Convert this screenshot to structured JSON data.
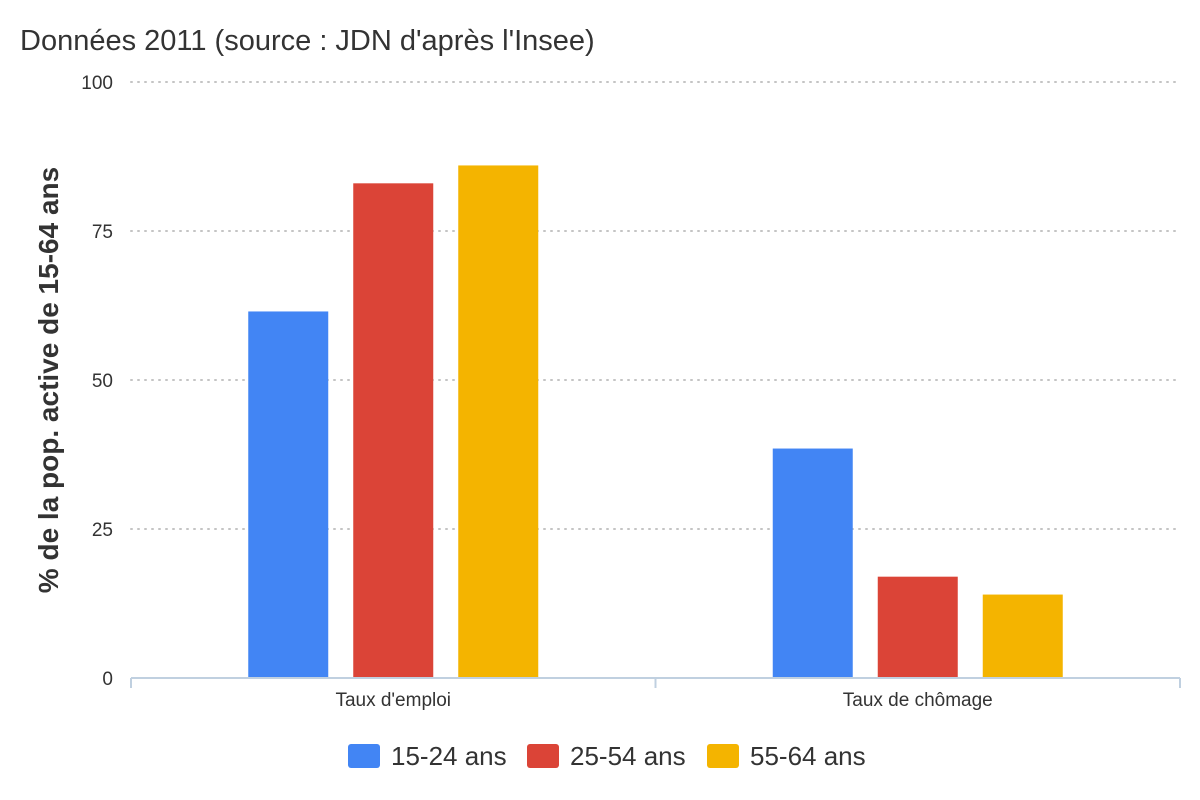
{
  "chart_data": {
    "type": "bar",
    "title": "Données 2011 (source : JDN d'après l'Insee)",
    "xlabel": "",
    "ylabel": "% de la pop. active de 15-64 ans",
    "ylim": [
      0,
      100
    ],
    "yticks": [
      "0",
      "25",
      "50",
      "75",
      "100"
    ],
    "categories": [
      "Taux d'emploi",
      "Taux de chômage"
    ],
    "series": [
      {
        "name": "15-24 ans",
        "color": "#4285f4",
        "values": [
          61.5,
          38.5
        ]
      },
      {
        "name": "25-54 ans",
        "color": "#db4437",
        "values": [
          83,
          17
        ]
      },
      {
        "name": "55-64 ans",
        "color": "#f4b400",
        "values": [
          86,
          14
        ]
      }
    ],
    "grid": true,
    "legend_position": "bottom"
  }
}
